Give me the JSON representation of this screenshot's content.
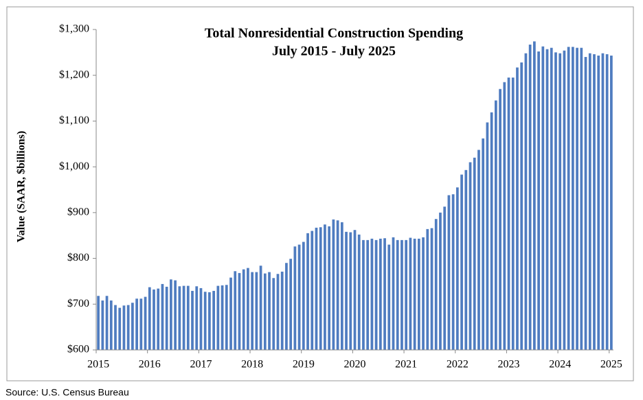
{
  "chart_data": {
    "type": "bar",
    "title": "Total Nonresidential Construction Spending",
    "subtitle": "July 2015 - July 2025",
    "y_label": "Value (SAAR, $billions)",
    "source": "Source:  U.S. Census Bureau",
    "color": "#4f7cc0",
    "categories": [
      "2015",
      null,
      null,
      null,
      null,
      null,
      null,
      null,
      null,
      null,
      null,
      null,
      "2016",
      null,
      null,
      null,
      null,
      null,
      null,
      null,
      null,
      null,
      null,
      null,
      "2017",
      null,
      null,
      null,
      null,
      null,
      null,
      null,
      null,
      null,
      null,
      null,
      "2018",
      null,
      null,
      null,
      null,
      null,
      null,
      null,
      null,
      null,
      null,
      null,
      "2019",
      null,
      null,
      null,
      null,
      null,
      null,
      null,
      null,
      null,
      null,
      null,
      "2020",
      null,
      null,
      null,
      null,
      null,
      null,
      null,
      null,
      null,
      null,
      null,
      "2021",
      null,
      null,
      null,
      null,
      null,
      null,
      null,
      null,
      null,
      null,
      null,
      "2022",
      null,
      null,
      null,
      null,
      null,
      null,
      null,
      null,
      null,
      null,
      null,
      "2023",
      null,
      null,
      null,
      null,
      null,
      null,
      null,
      null,
      null,
      null,
      null,
      "2024",
      null,
      null,
      null,
      null,
      null,
      null,
      null,
      null,
      null,
      null,
      null,
      "2025"
    ],
    "values": [
      718,
      708,
      718,
      708,
      698,
      692,
      697,
      698,
      703,
      712,
      712,
      716,
      737,
      732,
      734,
      744,
      738,
      754,
      752,
      739,
      740,
      740,
      729,
      739,
      735,
      727,
      726,
      729,
      740,
      741,
      742,
      758,
      772,
      768,
      776,
      779,
      770,
      770,
      784,
      767,
      770,
      757,
      766,
      771,
      790,
      799,
      826,
      830,
      836,
      855,
      860,
      867,
      868,
      874,
      870,
      885,
      883,
      879,
      858,
      857,
      862,
      852,
      840,
      840,
      843,
      840,
      843,
      844,
      830,
      846,
      840,
      840,
      840,
      845,
      843,
      843,
      846,
      864,
      866,
      886,
      900,
      913,
      938,
      940,
      955,
      983,
      993,
      1010,
      1020,
      1037,
      1062,
      1097,
      1119,
      1145,
      1170,
      1185,
      1195,
      1195,
      1217,
      1228,
      1248,
      1267,
      1274,
      1252,
      1263,
      1257,
      1260,
      1250,
      1248,
      1254,
      1262,
      1262,
      1260,
      1260,
      1240,
      1248,
      1246,
      1243,
      1248,
      1246,
      1243
    ],
    "ylim": [
      600,
      1300
    ],
    "yticks": [
      {
        "value": 600,
        "label": "$600"
      },
      {
        "value": 700,
        "label": "$700"
      },
      {
        "value": 800,
        "label": "$800"
      },
      {
        "value": 900,
        "label": "$900"
      },
      {
        "value": 1000,
        "label": "$1,000"
      },
      {
        "value": 1100,
        "label": "$1,100"
      },
      {
        "value": 1200,
        "label": "$1,200"
      },
      {
        "value": 1300,
        "label": "$1,300"
      }
    ],
    "grid": false
  }
}
